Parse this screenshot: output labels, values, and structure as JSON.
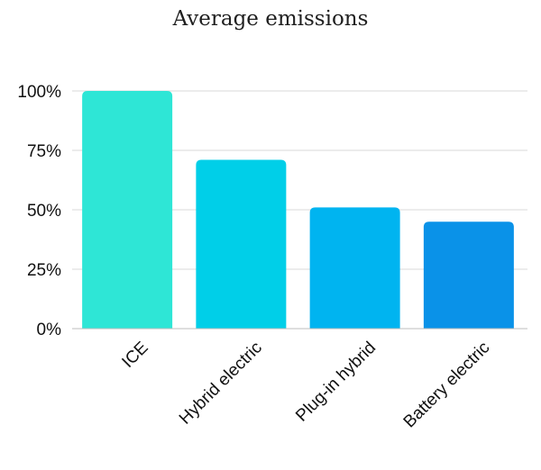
{
  "chart_data": {
    "type": "bar",
    "title": "Average emissions",
    "xlabel": "",
    "ylabel": "",
    "categories": [
      "ICE",
      "Hybrid electric",
      "Plug-in hybrid",
      "Battery electric"
    ],
    "values": [
      100,
      71,
      51,
      45
    ],
    "ylim": [
      0,
      100
    ],
    "yticks": [
      "0%",
      "25%",
      "50%",
      "75%",
      "100%"
    ],
    "ytick_values": [
      0,
      25,
      50,
      75,
      100
    ],
    "grid": true,
    "legend": "none",
    "colors": [
      "#2ee6d6",
      "#00cfe8",
      "#00b4f0",
      "#0a92e8"
    ]
  }
}
